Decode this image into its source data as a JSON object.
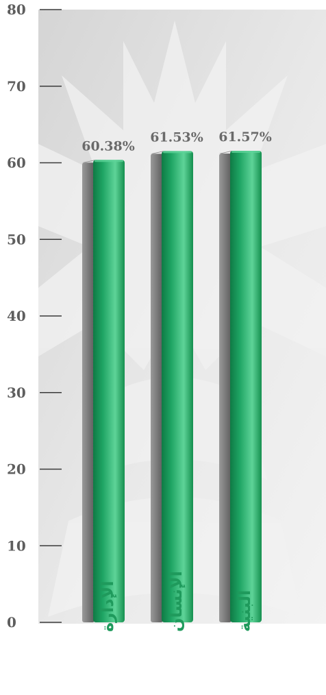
{
  "chart_data": {
    "type": "bar",
    "categories": [
      "الإدارة",
      "الإنسان",
      "البنية"
    ],
    "values": [
      60.38,
      61.53,
      61.57
    ],
    "data_labels": [
      "60.38%",
      "61.53%",
      "61.57%"
    ],
    "yticks": [
      0,
      10,
      20,
      30,
      40,
      50,
      60,
      70,
      80
    ],
    "ylim": [
      0,
      80
    ],
    "title": "",
    "xlabel": "",
    "ylabel": "",
    "grid": false,
    "legend": "none",
    "colors": {
      "bar_front": "#1ea463",
      "bar_front_light": "#5ed398",
      "bar_front_dark": "#0f7a45",
      "bar_back": "#8a8a8a",
      "bar_back_dark": "#5c5c5c",
      "axis_tick": "#3a3a3a",
      "tick_label": "#5e5e5e",
      "data_label": "#6a6a6a",
      "category_label": "#1f9a5c",
      "background": "#dcdcdc",
      "watermark": "#f1f1f1"
    }
  }
}
